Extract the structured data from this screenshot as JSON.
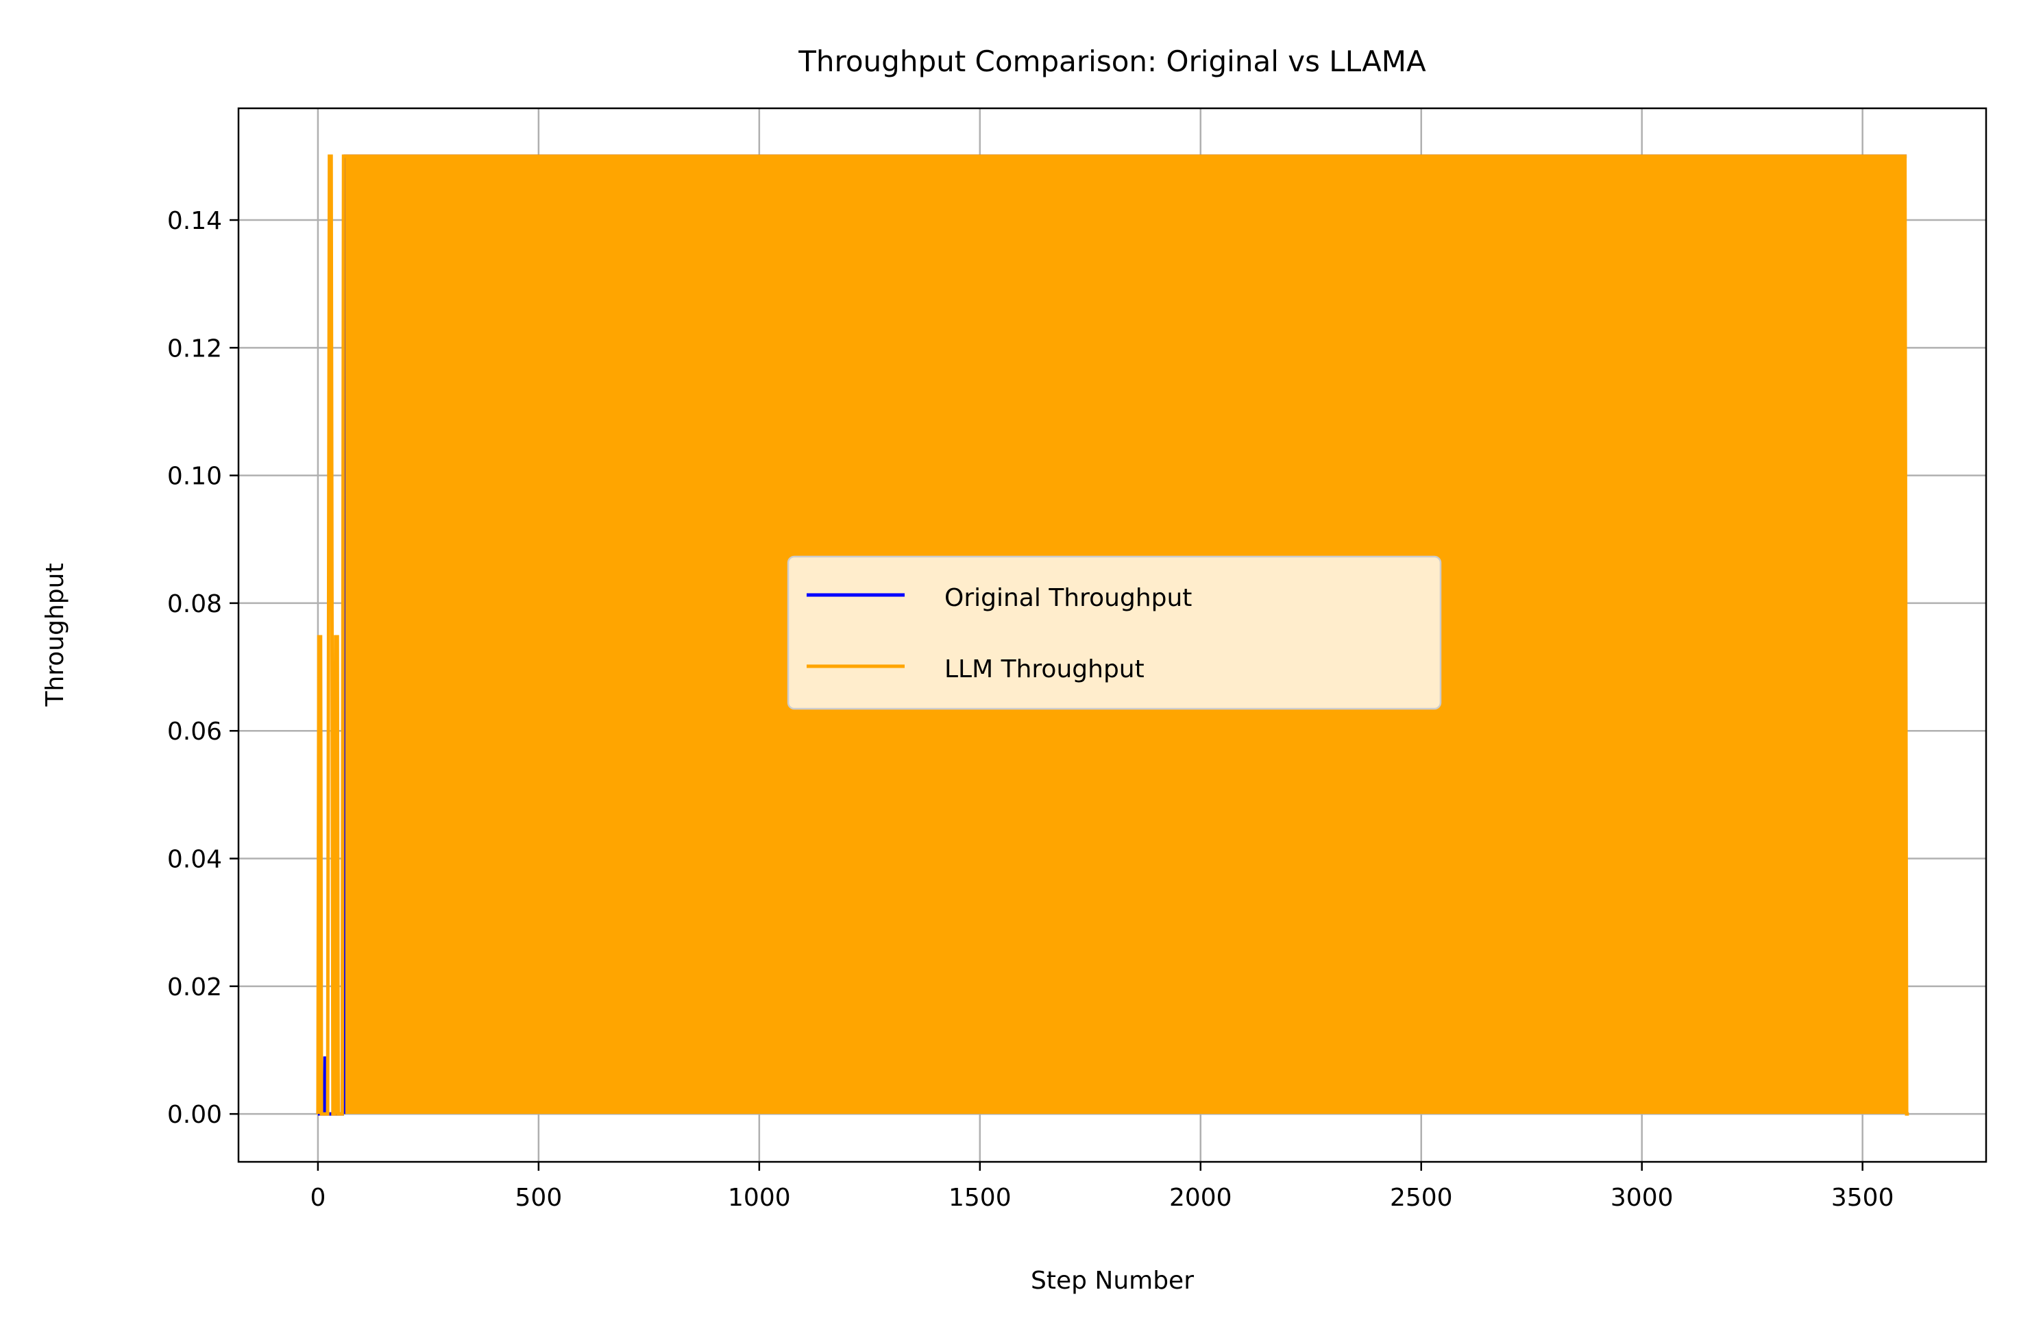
{
  "chart_data": {
    "type": "line",
    "title": "Throughput Comparison: Original vs LLAMA",
    "xlabel": "Step Number",
    "ylabel": "Throughput",
    "xlim": [
      -180,
      3780
    ],
    "ylim": [
      -0.0075,
      0.1575
    ],
    "x_ticks": [
      0,
      500,
      1000,
      1500,
      2000,
      2500,
      3000,
      3500
    ],
    "x_tick_labels": [
      "0",
      "500",
      "1000",
      "1500",
      "2000",
      "2500",
      "3000",
      "3500"
    ],
    "y_ticks": [
      0.0,
      0.02,
      0.04,
      0.06,
      0.08,
      0.1,
      0.12,
      0.14
    ],
    "y_tick_labels": [
      "0.00",
      "0.02",
      "0.04",
      "0.06",
      "0.08",
      "0.10",
      "0.12",
      "0.14"
    ],
    "grid": true,
    "legend_placement": "center",
    "series": [
      {
        "name": "Original Throughput",
        "color": "#0000ff",
        "x": [
          0,
          15,
          16,
          18,
          20,
          22,
          35,
          36,
          38,
          40,
          55,
          56,
          58,
          60,
          62,
          3600
        ],
        "y": [
          0,
          0,
          0.009,
          0.006,
          0,
          0,
          0,
          0.014,
          0.004,
          0,
          0,
          0.026,
          0.005,
          0,
          0.15,
          0.15
        ]
      },
      {
        "name": "LLM Throughput",
        "color": "#ffa500",
        "x": [
          0,
          2,
          4,
          6,
          8,
          10,
          22,
          26,
          30,
          34,
          38,
          40,
          42,
          44,
          46,
          55,
          58,
          62,
          3596,
          3600,
          3605
        ],
        "y": [
          0,
          0.075,
          0,
          0.075,
          0,
          0,
          0,
          0.15,
          0.15,
          0,
          0,
          0.075,
          0,
          0.075,
          0,
          0,
          0.15,
          0.15,
          0.15,
          0,
          0
        ],
        "dense_oscillation": {
          "x_start": 62,
          "x_end": 3600,
          "min": 0,
          "max": 0.15
        }
      }
    ]
  }
}
